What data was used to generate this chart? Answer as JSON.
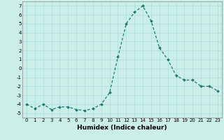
{
  "x": [
    0,
    1,
    2,
    3,
    4,
    5,
    6,
    7,
    8,
    9,
    10,
    11,
    12,
    13,
    14,
    15,
    16,
    17,
    18,
    19,
    20,
    21,
    22,
    23
  ],
  "y": [
    -4.0,
    -4.5,
    -4.0,
    -4.6,
    -4.3,
    -4.3,
    -4.6,
    -4.7,
    -4.5,
    -4.0,
    -2.7,
    1.3,
    5.0,
    6.3,
    7.0,
    5.3,
    2.3,
    1.0,
    -0.8,
    -1.3,
    -1.3,
    -2.0,
    -2.0,
    -2.5
  ],
  "line_color": "#1a7a6e",
  "marker": "D",
  "marker_size": 1.8,
  "bg_color": "#cceee8",
  "grid_color": "#aaddda",
  "title": "",
  "xlabel": "Humidex (Indice chaleur)",
  "ylabel": "",
  "xlim": [
    -0.5,
    23.5
  ],
  "ylim": [
    -5.5,
    7.5
  ],
  "yticks": [
    -5,
    -4,
    -3,
    -2,
    -1,
    0,
    1,
    2,
    3,
    4,
    5,
    6,
    7
  ],
  "xticks": [
    0,
    1,
    2,
    3,
    4,
    5,
    6,
    7,
    8,
    9,
    10,
    11,
    12,
    13,
    14,
    15,
    16,
    17,
    18,
    19,
    20,
    21,
    22,
    23
  ],
  "tick_fontsize": 5.0,
  "xlabel_fontsize": 6.5,
  "line_width": 0.9
}
